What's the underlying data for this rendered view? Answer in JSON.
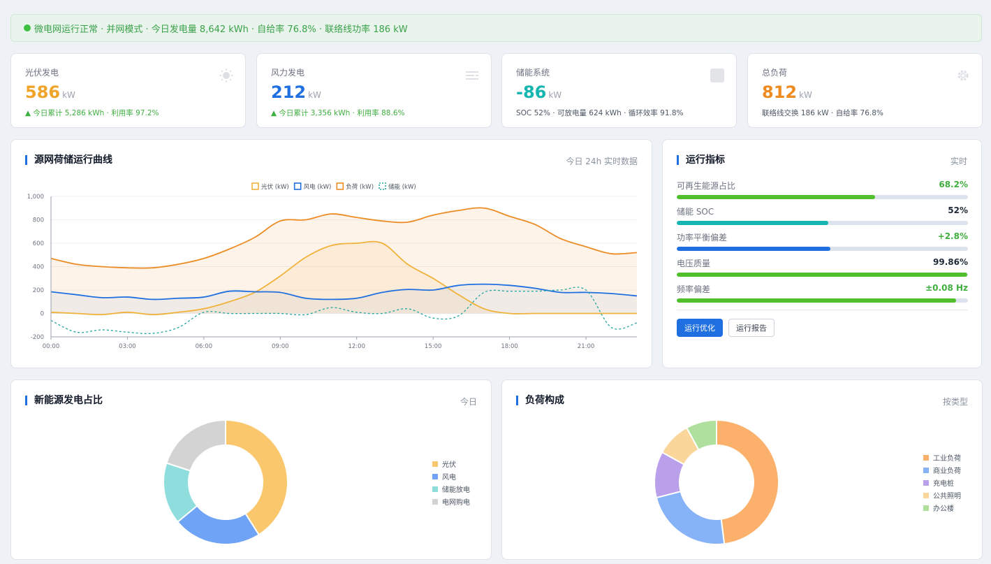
{
  "banner": {
    "text": "微电网运行正常 · 并网模式 · 今日发电量 8,642 kWh · 自给率 76.8% · 联络线功率 186 kW"
  },
  "kpis": [
    {
      "label": "光伏发电",
      "value": "586",
      "unit": "kW",
      "sub": "▲ 今日累计 5,286 kWh · 利用率 97.2%",
      "color": "#f0a52a",
      "icon": "sun-icon"
    },
    {
      "label": "风力发电",
      "value": "212",
      "unit": "kW",
      "sub": "▲ 今日累计 3,356 kWh · 利用率 88.6%",
      "color": "#1f6fe0",
      "icon": "wind-icon"
    },
    {
      "label": "储能系统",
      "value": "-86",
      "unit": "kW",
      "sub": "SOC 52% · 可放电量 624 kWh · 循环效率 91.8%",
      "color": "#16b5b0",
      "icon": "battery-icon"
    },
    {
      "label": "总负荷",
      "value": "812",
      "unit": "kW",
      "sub": "联络线交换 186 kW · 自给率 76.8%",
      "color": "#ee8c22",
      "icon": "gear-icon"
    }
  ],
  "trend": {
    "title": "源网荷储运行曲线",
    "right": "今日 24h 实时数据",
    "chart_data": {
      "type": "line",
      "x": [
        "00:00",
        "01:00",
        "02:00",
        "03:00",
        "04:00",
        "05:00",
        "06:00",
        "07:00",
        "08:00",
        "09:00",
        "10:00",
        "11:00",
        "12:00",
        "13:00",
        "14:00",
        "15:00",
        "16:00",
        "17:00",
        "18:00",
        "19:00",
        "20:00",
        "21:00",
        "22:00",
        "23:00"
      ],
      "xticks": [
        "00:00",
        "03:00",
        "06:00",
        "09:00",
        "12:00",
        "15:00",
        "18:00",
        "21:00"
      ],
      "ylim": [
        -200,
        1000
      ],
      "yticks": [
        "1,000",
        "800",
        "600",
        "400",
        "200",
        "0",
        "-200"
      ],
      "series": [
        {
          "name": "光伏 (kW)",
          "color": "#f0b23a",
          "values": [
            10,
            0,
            -10,
            10,
            -10,
            10,
            40,
            100,
            180,
            320,
            480,
            580,
            600,
            600,
            420,
            300,
            160,
            40,
            0,
            0,
            0,
            0,
            0,
            0
          ]
        },
        {
          "name": "风电 (kW)",
          "color": "#1f6fe0",
          "values": [
            185,
            160,
            135,
            140,
            120,
            130,
            140,
            190,
            185,
            180,
            130,
            120,
            130,
            180,
            205,
            200,
            240,
            250,
            240,
            215,
            180,
            180,
            170,
            150
          ]
        },
        {
          "name": "负荷 (kW)",
          "color": "#ec8c24",
          "values": [
            470,
            420,
            400,
            390,
            390,
            420,
            470,
            550,
            650,
            790,
            800,
            850,
            820,
            790,
            780,
            840,
            880,
            900,
            830,
            760,
            640,
            570,
            510,
            520
          ]
        },
        {
          "name": "储能 (kW)",
          "color": "#21a5a0",
          "values": [
            -60,
            -160,
            -140,
            -160,
            -170,
            -120,
            10,
            0,
            0,
            0,
            -10,
            50,
            10,
            0,
            40,
            -40,
            -20,
            180,
            190,
            190,
            200,
            200,
            -120,
            -80
          ]
        }
      ]
    }
  },
  "metrics": {
    "title": "运行指标",
    "right": "实时",
    "items": [
      {
        "label": "可再生能源占比",
        "value": "68.2%",
        "pct": 68.2,
        "color": "#4fbf2b",
        "vcolor": "#3fae3f"
      },
      {
        "label": "储能 SOC",
        "value": "52%",
        "pct": 52,
        "color": "#16b5b0",
        "vcolor": "#1f2937"
      },
      {
        "label": "功率平衡偏差",
        "value": "+2.8%",
        "pct": 52.8,
        "color": "#1f6fe0",
        "vcolor": "#3fae3f"
      },
      {
        "label": "电压质量",
        "value": "99.86%",
        "pct": 99.86,
        "color": "#4fbf2b",
        "vcolor": "#1f2937"
      },
      {
        "label": "频率偏差",
        "value": "±0.08 Hz",
        "pct": 96,
        "color": "#4fbf2b",
        "vcolor": "#3fae3f"
      }
    ],
    "btn_primary": "运行优化",
    "btn_secondary": "运行报告"
  },
  "gen_share": {
    "title": "新能源发电占比",
    "right": "今日",
    "chart_data": {
      "type": "pie",
      "labels": [
        "光伏",
        "风电",
        "储能放电",
        "电网购电"
      ],
      "values": [
        41,
        23,
        16,
        20
      ],
      "colors": [
        "#fac76c",
        "#6ea3f5",
        "#8fdedd",
        "#d3d3d3"
      ]
    }
  },
  "load_mix": {
    "title": "负荷构成",
    "right": "按类型",
    "chart_data": {
      "type": "pie",
      "labels": [
        "工业负荷",
        "商业负荷",
        "充电桩",
        "公共照明",
        "办公楼"
      ],
      "values": [
        48,
        23,
        12,
        9,
        8
      ],
      "colors": [
        "#fbb06c",
        "#86b2f8",
        "#baa0ea",
        "#fad69a",
        "#b0e09e"
      ]
    }
  }
}
